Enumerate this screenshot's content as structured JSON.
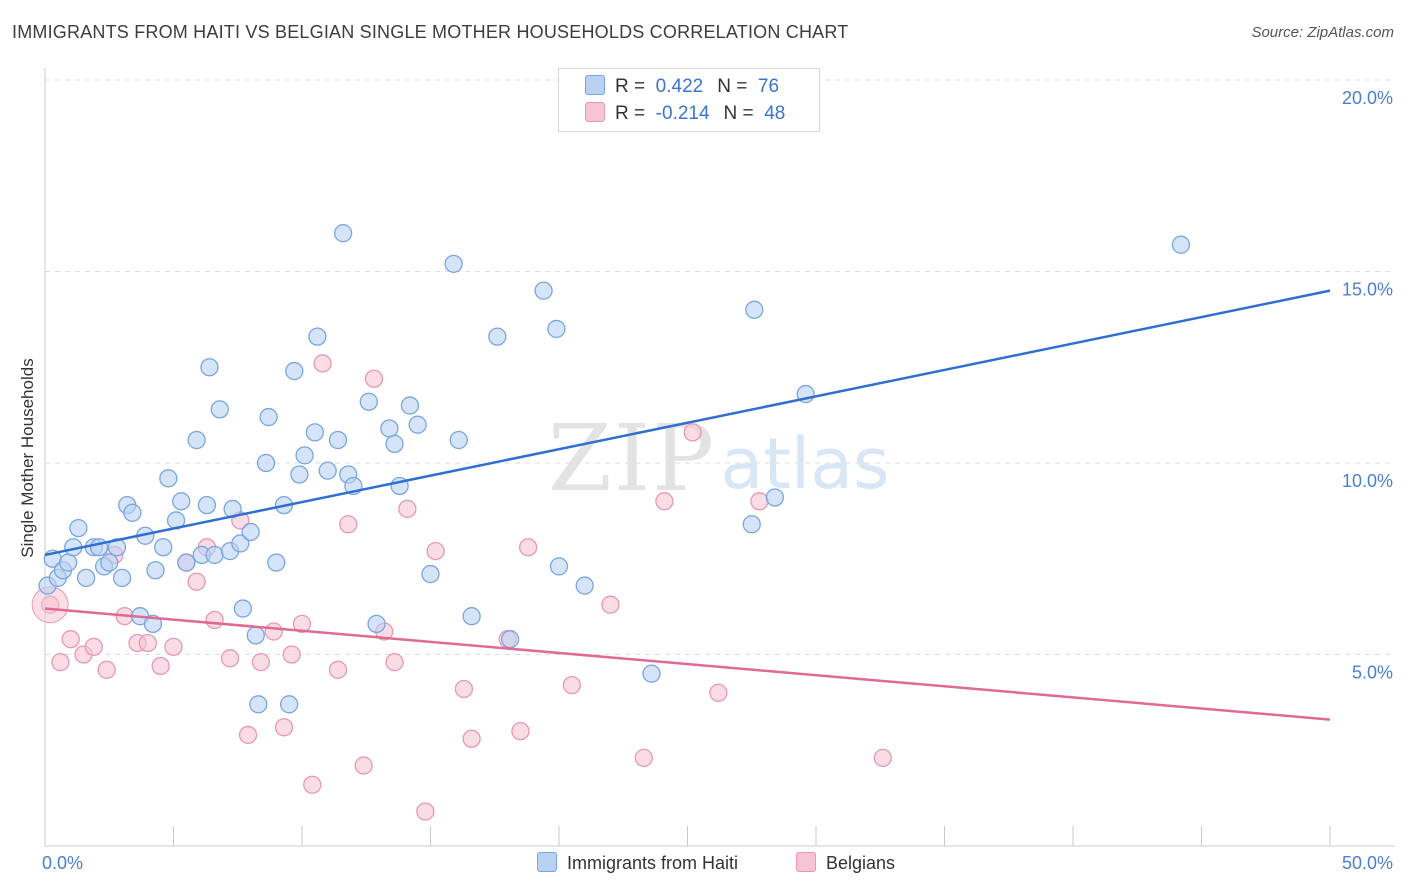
{
  "header": {
    "title": "IMMIGRANTS FROM HAITI VS BELGIAN SINGLE MOTHER HOUSEHOLDS CORRELATION CHART",
    "source": "Source: ZipAtlas.com"
  },
  "watermark": {
    "zip": "ZIP",
    "atlas": "atlas"
  },
  "colors": {
    "haiti_fill": "#b9d2f3",
    "haiti_stroke": "#7aa6e0",
    "haiti_line": "#2f6fd0",
    "belgian_fill": "#f6c4d3",
    "belgian_stroke": "#e898b2",
    "belgian_line": "#e06a93",
    "axis_label": "#4a7fd0",
    "grid": "#dddddd"
  },
  "legend": {
    "rows": [
      {
        "r_label": "R =",
        "r_value": "0.422",
        "n_label": "N =",
        "n_value": "76"
      },
      {
        "r_label": "R =",
        "r_value": "-0.214",
        "n_label": "N =",
        "n_value": "48"
      }
    ]
  },
  "bottom_legend": {
    "haiti": "Immigrants from Haiti",
    "belgians": "Belgians"
  },
  "chart_data": {
    "type": "scatter",
    "ylabel": "Single Mother Households",
    "xlim": [
      0,
      50
    ],
    "ylim": [
      0,
      20
    ],
    "x_tick_labels": [
      "0.0%",
      "50.0%"
    ],
    "y_ticks": [
      5,
      10,
      15,
      20
    ],
    "y_tick_labels": [
      "5.0%",
      "10.0%",
      "15.0%",
      "20.0%"
    ],
    "grid": true,
    "series": [
      {
        "name": "Immigrants from Haiti",
        "r": 0.422,
        "n": 76,
        "trend": {
          "x": [
            0,
            50
          ],
          "y": [
            7.6,
            14.5
          ]
        },
        "points": [
          [
            0.1,
            6.8
          ],
          [
            0.3,
            7.5
          ],
          [
            0.5,
            7.0
          ],
          [
            0.7,
            7.2
          ],
          [
            0.9,
            7.4
          ],
          [
            1.1,
            7.8
          ],
          [
            1.3,
            8.3
          ],
          [
            1.6,
            7.0
          ],
          [
            1.9,
            7.8
          ],
          [
            2.1,
            7.8
          ],
          [
            2.3,
            7.3
          ],
          [
            2.5,
            7.4
          ],
          [
            2.8,
            7.8
          ],
          [
            3.0,
            7.0
          ],
          [
            3.2,
            8.9
          ],
          [
            3.4,
            8.7
          ],
          [
            3.7,
            6.0
          ],
          [
            3.9,
            8.1
          ],
          [
            4.2,
            5.8
          ],
          [
            4.3,
            7.2
          ],
          [
            4.6,
            7.8
          ],
          [
            4.8,
            9.6
          ],
          [
            5.1,
            8.5
          ],
          [
            5.3,
            9.0
          ],
          [
            5.5,
            7.4
          ],
          [
            5.9,
            10.6
          ],
          [
            6.1,
            7.6
          ],
          [
            6.3,
            8.9
          ],
          [
            6.4,
            12.5
          ],
          [
            6.6,
            7.6
          ],
          [
            6.8,
            11.4
          ],
          [
            7.2,
            7.7
          ],
          [
            7.3,
            8.8
          ],
          [
            7.6,
            7.9
          ],
          [
            7.7,
            6.2
          ],
          [
            8.0,
            8.2
          ],
          [
            8.2,
            5.5
          ],
          [
            8.3,
            3.7
          ],
          [
            8.6,
            10.0
          ],
          [
            8.7,
            11.2
          ],
          [
            9.0,
            7.4
          ],
          [
            9.3,
            8.9
          ],
          [
            9.5,
            3.7
          ],
          [
            9.7,
            12.4
          ],
          [
            9.9,
            9.7
          ],
          [
            10.1,
            10.2
          ],
          [
            10.5,
            10.8
          ],
          [
            10.6,
            13.3
          ],
          [
            11.0,
            9.8
          ],
          [
            11.4,
            10.6
          ],
          [
            11.6,
            16.0
          ],
          [
            11.8,
            9.7
          ],
          [
            12.0,
            9.4
          ],
          [
            12.6,
            11.6
          ],
          [
            12.9,
            5.8
          ],
          [
            13.4,
            10.9
          ],
          [
            13.6,
            10.5
          ],
          [
            13.8,
            9.4
          ],
          [
            14.2,
            11.5
          ],
          [
            14.5,
            11.0
          ],
          [
            15.0,
            7.1
          ],
          [
            15.9,
            15.2
          ],
          [
            16.1,
            10.6
          ],
          [
            16.6,
            6.0
          ],
          [
            17.6,
            13.3
          ],
          [
            18.1,
            5.4
          ],
          [
            19.4,
            14.5
          ],
          [
            19.9,
            13.5
          ],
          [
            20.0,
            7.3
          ],
          [
            21.0,
            6.8
          ],
          [
            23.6,
            4.5
          ],
          [
            27.5,
            8.4
          ],
          [
            27.6,
            14.0
          ],
          [
            28.4,
            9.1
          ],
          [
            29.6,
            11.8
          ],
          [
            44.2,
            15.7
          ]
        ]
      },
      {
        "name": "Belgians",
        "r": -0.214,
        "n": 48,
        "trend": {
          "x": [
            0,
            50
          ],
          "y": [
            6.2,
            3.3
          ]
        },
        "points": [
          [
            0.2,
            6.3
          ],
          [
            0.6,
            4.8
          ],
          [
            1.0,
            5.4
          ],
          [
            1.5,
            5.0
          ],
          [
            1.9,
            5.2
          ],
          [
            2.4,
            4.6
          ],
          [
            2.7,
            7.6
          ],
          [
            3.1,
            6.0
          ],
          [
            3.6,
            5.3
          ],
          [
            4.0,
            5.3
          ],
          [
            4.5,
            4.7
          ],
          [
            5.0,
            5.2
          ],
          [
            5.5,
            7.4
          ],
          [
            5.9,
            6.9
          ],
          [
            6.3,
            7.8
          ],
          [
            6.6,
            5.9
          ],
          [
            7.2,
            4.9
          ],
          [
            7.6,
            8.5
          ],
          [
            7.9,
            2.9
          ],
          [
            8.4,
            4.8
          ],
          [
            8.9,
            5.6
          ],
          [
            9.3,
            3.1
          ],
          [
            9.6,
            5.0
          ],
          [
            10.0,
            5.8
          ],
          [
            10.4,
            1.6
          ],
          [
            10.8,
            12.6
          ],
          [
            11.4,
            4.6
          ],
          [
            11.8,
            8.4
          ],
          [
            12.4,
            2.1
          ],
          [
            12.8,
            12.2
          ],
          [
            13.2,
            5.6
          ],
          [
            13.6,
            4.8
          ],
          [
            14.1,
            8.8
          ],
          [
            14.8,
            0.9
          ],
          [
            15.2,
            7.7
          ],
          [
            16.3,
            4.1
          ],
          [
            16.6,
            2.8
          ],
          [
            18.0,
            5.4
          ],
          [
            18.5,
            3.0
          ],
          [
            18.8,
            7.8
          ],
          [
            20.5,
            4.2
          ],
          [
            22.0,
            6.3
          ],
          [
            23.3,
            2.3
          ],
          [
            24.1,
            9.0
          ],
          [
            25.2,
            10.8
          ],
          [
            26.2,
            4.0
          ],
          [
            27.8,
            9.0
          ],
          [
            32.6,
            2.3
          ]
        ]
      }
    ]
  }
}
